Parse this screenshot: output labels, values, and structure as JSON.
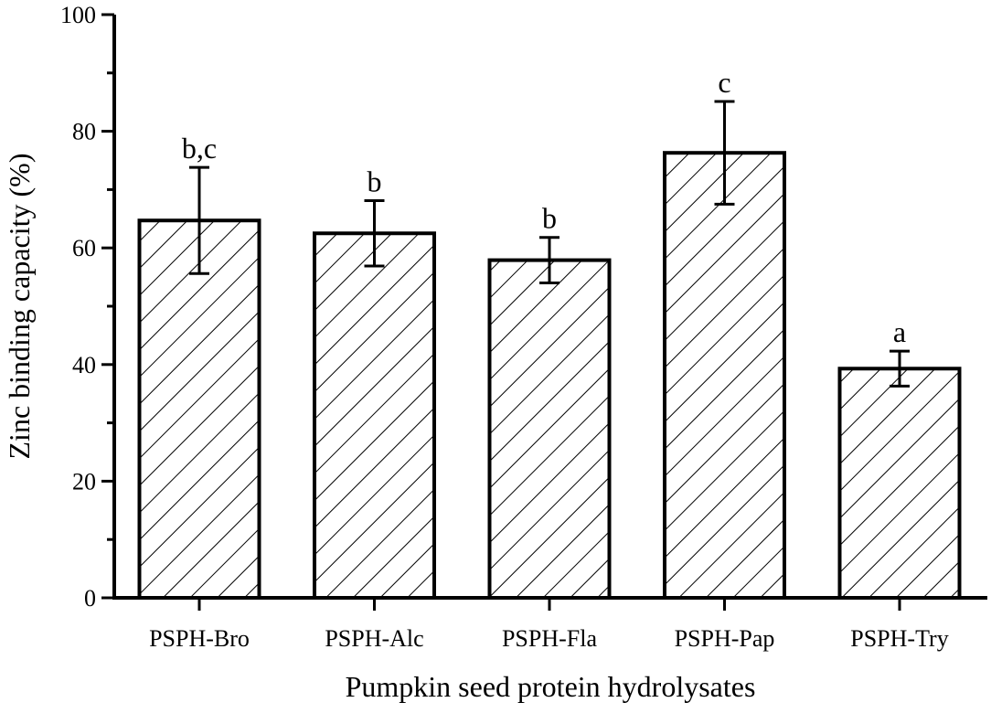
{
  "chart_data": {
    "type": "bar",
    "title": "",
    "xlabel": "Pumpkin seed protein hydrolysates",
    "ylabel": "Zinc binding capacity (%)",
    "ylim": [
      0,
      100
    ],
    "yticks": [
      0,
      20,
      40,
      60,
      80,
      100
    ],
    "categories": [
      "PSPH-Bro",
      "PSPH-Alc",
      "PSPH-Fla",
      "PSPH-Pap",
      "PSPH-Try"
    ],
    "series": [
      {
        "values": [
          64.7,
          62.5,
          57.9,
          76.3,
          39.3
        ],
        "errors": [
          9.1,
          5.6,
          3.9,
          8.8,
          3.0
        ],
        "significance": [
          "b,c",
          "b",
          "b",
          "c",
          "a"
        ]
      }
    ],
    "bar_fill": "diagonal hatch",
    "bar_color": "#000000",
    "grid": false,
    "legend": "none"
  }
}
